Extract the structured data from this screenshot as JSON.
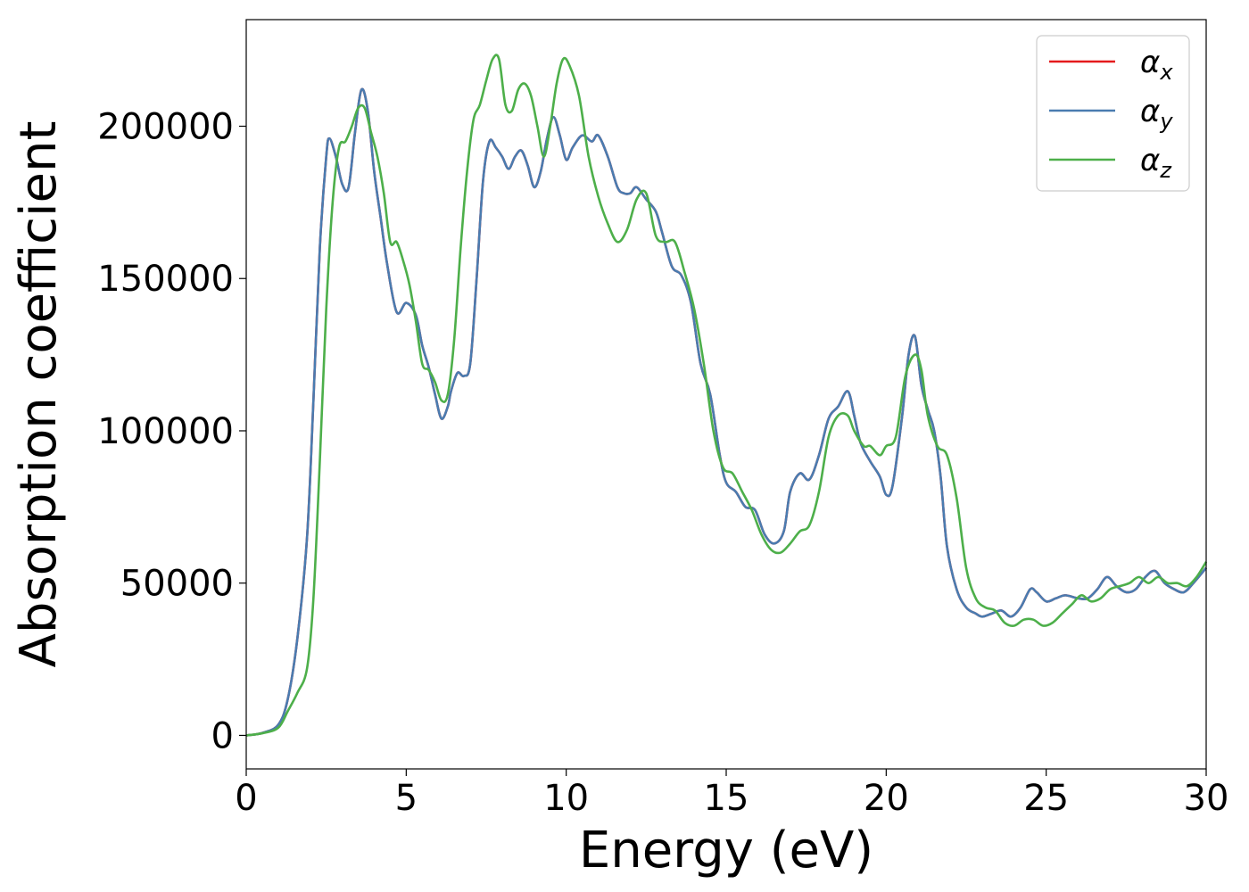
{
  "chart_data": {
    "type": "line",
    "title": "",
    "xlabel": "Energy (eV)",
    "ylabel": "Absorption coefficient",
    "xlim": [
      0,
      30
    ],
    "ylim": [
      -11000,
      235000
    ],
    "xticks": [
      0,
      5,
      10,
      15,
      20,
      25,
      30
    ],
    "xtick_labels": [
      "0",
      "5",
      "10",
      "15",
      "20",
      "25",
      "30"
    ],
    "yticks": [
      0,
      50000,
      100000,
      150000,
      200000
    ],
    "ytick_labels": [
      "0",
      "50000",
      "100000",
      "150000",
      "200000"
    ],
    "grid": false,
    "legend_position": "top-right",
    "series": [
      {
        "name": "α_x",
        "symbol": "α",
        "subscript": "x",
        "color": "#e41a1c",
        "x": [
          0,
          0.5,
          1.0,
          1.3,
          1.6,
          1.9,
          2.1,
          2.3,
          2.5,
          2.6,
          2.8,
          3.0,
          3.2,
          3.4,
          3.6,
          3.8,
          4.0,
          4.2,
          4.4,
          4.7,
          5.0,
          5.3,
          5.5,
          5.7,
          5.9,
          6.1,
          6.3,
          6.4,
          6.6,
          6.8,
          7.0,
          7.2,
          7.4,
          7.6,
          7.8,
          8.0,
          8.2,
          8.4,
          8.6,
          8.8,
          9.0,
          9.2,
          9.4,
          9.6,
          9.8,
          10.0,
          10.2,
          10.5,
          10.8,
          11.0,
          11.3,
          11.6,
          11.8,
          12.0,
          12.2,
          12.5,
          12.8,
          13.0,
          13.3,
          13.6,
          13.9,
          14.2,
          14.5,
          14.8,
          15.0,
          15.3,
          15.6,
          15.9,
          16.2,
          16.5,
          16.8,
          17.0,
          17.3,
          17.6,
          17.9,
          18.2,
          18.5,
          18.8,
          19.0,
          19.2,
          19.5,
          19.8,
          20.0,
          20.2,
          20.5,
          20.7,
          20.9,
          21.1,
          21.3,
          21.5,
          21.7,
          21.9,
          22.2,
          22.5,
          22.8,
          23.0,
          23.3,
          23.6,
          23.9,
          24.2,
          24.5,
          24.7,
          25.0,
          25.3,
          25.6,
          26.0,
          26.3,
          26.6,
          26.9,
          27.2,
          27.5,
          27.8,
          28.1,
          28.4,
          28.7,
          29.0,
          29.3,
          29.6,
          30.0
        ],
        "y": [
          0,
          800,
          3500,
          12000,
          32000,
          65000,
          110000,
          160000,
          190000,
          196000,
          190000,
          181000,
          180000,
          198000,
          212000,
          205000,
          185000,
          170000,
          155000,
          139000,
          142000,
          138000,
          128000,
          121000,
          112000,
          104000,
          108000,
          113000,
          119000,
          118000,
          122000,
          150000,
          182000,
          195000,
          193000,
          190000,
          186000,
          190000,
          192000,
          187000,
          180000,
          185000,
          196000,
          203000,
          197000,
          189000,
          193000,
          197000,
          195000,
          197000,
          190000,
          180000,
          178000,
          178000,
          180000,
          176000,
          172000,
          165000,
          154000,
          151000,
          142000,
          122000,
          112000,
          92000,
          83000,
          80000,
          75000,
          74000,
          66000,
          63000,
          67000,
          80000,
          86000,
          84000,
          92000,
          104000,
          108000,
          113000,
          105000,
          96000,
          90000,
          85000,
          79000,
          82000,
          105000,
          125000,
          131000,
          115000,
          107000,
          100000,
          85000,
          62000,
          48000,
          42000,
          40000,
          39000,
          40000,
          41000,
          39000,
          42000,
          48000,
          47000,
          44000,
          45000,
          46000,
          45000,
          45000,
          48000,
          52000,
          49000,
          47000,
          48000,
          52000,
          54000,
          50000,
          48000,
          47000,
          50000,
          55000
        ]
      },
      {
        "name": "α_y",
        "symbol": "α",
        "subscript": "y",
        "color": "#4a7cb0",
        "x": [
          0,
          0.5,
          1.0,
          1.3,
          1.6,
          1.9,
          2.1,
          2.3,
          2.5,
          2.6,
          2.8,
          3.0,
          3.2,
          3.4,
          3.6,
          3.8,
          4.0,
          4.2,
          4.4,
          4.7,
          5.0,
          5.3,
          5.5,
          5.7,
          5.9,
          6.1,
          6.3,
          6.4,
          6.6,
          6.8,
          7.0,
          7.2,
          7.4,
          7.6,
          7.8,
          8.0,
          8.2,
          8.4,
          8.6,
          8.8,
          9.0,
          9.2,
          9.4,
          9.6,
          9.8,
          10.0,
          10.2,
          10.5,
          10.8,
          11.0,
          11.3,
          11.6,
          11.8,
          12.0,
          12.2,
          12.5,
          12.8,
          13.0,
          13.3,
          13.6,
          13.9,
          14.2,
          14.5,
          14.8,
          15.0,
          15.3,
          15.6,
          15.9,
          16.2,
          16.5,
          16.8,
          17.0,
          17.3,
          17.6,
          17.9,
          18.2,
          18.5,
          18.8,
          19.0,
          19.2,
          19.5,
          19.8,
          20.0,
          20.2,
          20.5,
          20.7,
          20.9,
          21.1,
          21.3,
          21.5,
          21.7,
          21.9,
          22.2,
          22.5,
          22.8,
          23.0,
          23.3,
          23.6,
          23.9,
          24.2,
          24.5,
          24.7,
          25.0,
          25.3,
          25.6,
          26.0,
          26.3,
          26.6,
          26.9,
          27.2,
          27.5,
          27.8,
          28.1,
          28.4,
          28.7,
          29.0,
          29.3,
          29.6,
          30.0
        ],
        "y": [
          0,
          800,
          3500,
          12000,
          32000,
          65000,
          110000,
          160000,
          190000,
          196000,
          190000,
          181000,
          180000,
          198000,
          212000,
          205000,
          185000,
          170000,
          155000,
          139000,
          142000,
          138000,
          128000,
          121000,
          112000,
          104000,
          108000,
          113000,
          119000,
          118000,
          122000,
          150000,
          182000,
          195000,
          193000,
          190000,
          186000,
          190000,
          192000,
          187000,
          180000,
          185000,
          196000,
          203000,
          197000,
          189000,
          193000,
          197000,
          195000,
          197000,
          190000,
          180000,
          178000,
          178000,
          180000,
          176000,
          172000,
          165000,
          154000,
          151000,
          142000,
          122000,
          112000,
          92000,
          83000,
          80000,
          75000,
          74000,
          66000,
          63000,
          67000,
          80000,
          86000,
          84000,
          92000,
          104000,
          108000,
          113000,
          105000,
          96000,
          90000,
          85000,
          79000,
          82000,
          105000,
          125000,
          131000,
          115000,
          107000,
          100000,
          85000,
          62000,
          48000,
          42000,
          40000,
          39000,
          40000,
          41000,
          39000,
          42000,
          48000,
          47000,
          44000,
          45000,
          46000,
          45000,
          45000,
          48000,
          52000,
          49000,
          47000,
          48000,
          52000,
          54000,
          50000,
          48000,
          47000,
          50000,
          55000
        ]
      },
      {
        "name": "α_z",
        "symbol": "α",
        "subscript": "z",
        "color": "#4daf4a",
        "x": [
          0,
          0.5,
          1.0,
          1.3,
          1.6,
          1.9,
          2.1,
          2.3,
          2.5,
          2.7,
          2.9,
          3.1,
          3.3,
          3.5,
          3.7,
          3.9,
          4.1,
          4.3,
          4.5,
          4.7,
          4.9,
          5.1,
          5.3,
          5.5,
          5.7,
          5.9,
          6.1,
          6.3,
          6.5,
          6.7,
          6.9,
          7.1,
          7.3,
          7.5,
          7.7,
          7.9,
          8.1,
          8.3,
          8.5,
          8.7,
          8.9,
          9.1,
          9.3,
          9.5,
          9.7,
          9.9,
          10.1,
          10.4,
          10.7,
          11.0,
          11.3,
          11.6,
          11.9,
          12.2,
          12.5,
          12.8,
          13.1,
          13.4,
          13.7,
          14.0,
          14.3,
          14.6,
          14.9,
          15.2,
          15.5,
          15.8,
          16.1,
          16.4,
          16.7,
          17.0,
          17.3,
          17.6,
          17.9,
          18.2,
          18.5,
          18.8,
          19.0,
          19.3,
          19.5,
          19.8,
          20.0,
          20.3,
          20.6,
          20.9,
          21.1,
          21.3,
          21.6,
          21.9,
          22.2,
          22.5,
          22.8,
          23.1,
          23.4,
          23.7,
          24.0,
          24.3,
          24.6,
          24.9,
          25.2,
          25.5,
          25.8,
          26.1,
          26.4,
          26.7,
          27.0,
          27.3,
          27.6,
          27.9,
          28.2,
          28.5,
          28.8,
          29.1,
          29.4,
          29.7,
          30.0
        ],
        "y": [
          0,
          700,
          2500,
          8000,
          14000,
          22000,
          45000,
          90000,
          140000,
          175000,
          193000,
          195000,
          200000,
          206000,
          206000,
          198000,
          190000,
          178000,
          162000,
          162000,
          156000,
          148000,
          136000,
          122000,
          120000,
          116000,
          110000,
          112000,
          130000,
          160000,
          185000,
          202000,
          207000,
          215000,
          222000,
          222000,
          207000,
          205000,
          212000,
          214000,
          210000,
          200000,
          190000,
          200000,
          214000,
          222000,
          220000,
          210000,
          190000,
          177000,
          168000,
          162000,
          166000,
          176000,
          178000,
          164000,
          162000,
          162000,
          152000,
          140000,
          122000,
          100000,
          88000,
          86000,
          80000,
          74000,
          66000,
          61000,
          60000,
          63000,
          67000,
          69000,
          80000,
          98000,
          105000,
          105000,
          100000,
          95000,
          95000,
          92000,
          95000,
          98000,
          118000,
          125000,
          120000,
          105000,
          95000,
          92000,
          78000,
          55000,
          45000,
          42000,
          41000,
          37000,
          36000,
          38000,
          38000,
          36000,
          37000,
          40000,
          43000,
          46000,
          44000,
          45000,
          48000,
          49000,
          50000,
          52000,
          50000,
          52000,
          50000,
          50000,
          49000,
          52000,
          57000
        ]
      }
    ]
  }
}
